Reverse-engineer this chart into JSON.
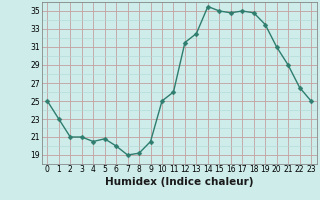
{
  "x": [
    0,
    1,
    2,
    3,
    4,
    5,
    6,
    7,
    8,
    9,
    10,
    11,
    12,
    13,
    14,
    15,
    16,
    17,
    18,
    19,
    20,
    21,
    22,
    23
  ],
  "y": [
    25,
    23,
    21,
    21,
    20.5,
    20.8,
    20,
    19,
    19.2,
    20.5,
    25,
    26,
    31.5,
    32.5,
    35.5,
    35,
    34.8,
    35,
    34.8,
    33.5,
    31,
    29,
    26.5,
    25
  ],
  "line_color": "#2e7d6e",
  "marker": "D",
  "marker_size": 2.5,
  "line_width": 1.0,
  "bg_color": "#ceecea",
  "grid_major_color": "#c4a0a0",
  "grid_minor_color": "#aed8d4",
  "xlabel": "Humidex (Indice chaleur)",
  "xlabel_fontsize": 7.5,
  "ylim": [
    18,
    36
  ],
  "xlim": [
    -0.5,
    23.5
  ],
  "yticks": [
    19,
    21,
    23,
    25,
    27,
    29,
    31,
    33,
    35
  ],
  "xticks": [
    0,
    1,
    2,
    3,
    4,
    5,
    6,
    7,
    8,
    9,
    10,
    11,
    12,
    13,
    14,
    15,
    16,
    17,
    18,
    19,
    20,
    21,
    22,
    23
  ],
  "tick_fontsize": 5.5
}
